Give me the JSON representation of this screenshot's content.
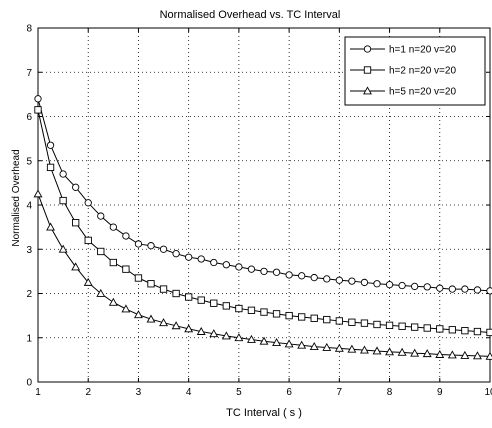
{
  "chart_data": {
    "type": "line",
    "title": "Normalised Overhead vs. TC Interval",
    "xlabel": "TC Interval ( s )",
    "ylabel": "Normalised Overhead",
    "xlim": [
      1,
      10
    ],
    "ylim": [
      0,
      8
    ],
    "xticks": [
      "1",
      "2",
      "3",
      "4",
      "5",
      "6",
      "7",
      "8",
      "9",
      "10"
    ],
    "yticks": [
      "0",
      "1",
      "2",
      "3",
      "4",
      "5",
      "6",
      "7",
      "8"
    ],
    "grid": true,
    "legend": "top-right",
    "series": [
      {
        "name": "h=1 n=20 v=20",
        "marker": "circle",
        "points": [
          [
            1.0,
            6.4
          ],
          [
            1.25,
            5.35
          ],
          [
            1.5,
            4.7
          ],
          [
            1.75,
            4.4
          ],
          [
            2.0,
            4.05
          ],
          [
            2.25,
            3.75
          ],
          [
            2.5,
            3.5
          ],
          [
            2.75,
            3.3
          ],
          [
            3.0,
            3.12
          ],
          [
            3.25,
            3.08
          ],
          [
            3.5,
            3.0
          ],
          [
            3.75,
            2.9
          ],
          [
            4.0,
            2.82
          ],
          [
            4.25,
            2.78
          ],
          [
            4.5,
            2.7
          ],
          [
            4.75,
            2.65
          ],
          [
            5.0,
            2.6
          ],
          [
            5.25,
            2.55
          ],
          [
            5.5,
            2.5
          ],
          [
            5.75,
            2.48
          ],
          [
            6.0,
            2.42
          ],
          [
            6.25,
            2.4
          ],
          [
            6.5,
            2.36
          ],
          [
            6.75,
            2.33
          ],
          [
            7.0,
            2.3
          ],
          [
            7.25,
            2.28
          ],
          [
            7.5,
            2.25
          ],
          [
            7.75,
            2.22
          ],
          [
            8.0,
            2.2
          ],
          [
            8.25,
            2.18
          ],
          [
            8.5,
            2.16
          ],
          [
            8.75,
            2.15
          ],
          [
            9.0,
            2.12
          ],
          [
            9.25,
            2.1
          ],
          [
            9.5,
            2.1
          ],
          [
            9.75,
            2.08
          ],
          [
            10.0,
            2.06
          ]
        ]
      },
      {
        "name": "h=2 n=20 v=20",
        "marker": "square",
        "points": [
          [
            1.0,
            6.15
          ],
          [
            1.25,
            4.85
          ],
          [
            1.5,
            4.1
          ],
          [
            1.75,
            3.6
          ],
          [
            2.0,
            3.2
          ],
          [
            2.25,
            2.95
          ],
          [
            2.5,
            2.7
          ],
          [
            2.75,
            2.55
          ],
          [
            3.0,
            2.35
          ],
          [
            3.25,
            2.22
          ],
          [
            3.5,
            2.1
          ],
          [
            3.75,
            2.0
          ],
          [
            4.0,
            1.92
          ],
          [
            4.25,
            1.85
          ],
          [
            4.5,
            1.78
          ],
          [
            4.75,
            1.72
          ],
          [
            5.0,
            1.66
          ],
          [
            5.25,
            1.62
          ],
          [
            5.5,
            1.58
          ],
          [
            5.75,
            1.54
          ],
          [
            6.0,
            1.5
          ],
          [
            6.25,
            1.47
          ],
          [
            6.5,
            1.44
          ],
          [
            6.75,
            1.41
          ],
          [
            7.0,
            1.38
          ],
          [
            7.25,
            1.35
          ],
          [
            7.5,
            1.33
          ],
          [
            7.75,
            1.3
          ],
          [
            8.0,
            1.28
          ],
          [
            8.25,
            1.26
          ],
          [
            8.5,
            1.24
          ],
          [
            8.75,
            1.22
          ],
          [
            9.0,
            1.2
          ],
          [
            9.25,
            1.18
          ],
          [
            9.5,
            1.16
          ],
          [
            9.75,
            1.14
          ],
          [
            10.0,
            1.12
          ]
        ]
      },
      {
        "name": "h=5 n=20 v=20",
        "marker": "triangle",
        "points": [
          [
            1.0,
            4.25
          ],
          [
            1.25,
            3.5
          ],
          [
            1.5,
            3.0
          ],
          [
            1.75,
            2.6
          ],
          [
            2.0,
            2.25
          ],
          [
            2.25,
            2.0
          ],
          [
            2.5,
            1.8
          ],
          [
            2.75,
            1.65
          ],
          [
            3.0,
            1.52
          ],
          [
            3.25,
            1.42
          ],
          [
            3.5,
            1.34
          ],
          [
            3.75,
            1.27
          ],
          [
            4.0,
            1.2
          ],
          [
            4.25,
            1.14
          ],
          [
            4.5,
            1.09
          ],
          [
            4.75,
            1.04
          ],
          [
            5.0,
            1.0
          ],
          [
            5.25,
            0.96
          ],
          [
            5.5,
            0.92
          ],
          [
            5.75,
            0.89
          ],
          [
            6.0,
            0.86
          ],
          [
            6.25,
            0.83
          ],
          [
            6.5,
            0.8
          ],
          [
            6.75,
            0.78
          ],
          [
            7.0,
            0.76
          ],
          [
            7.25,
            0.74
          ],
          [
            7.5,
            0.72
          ],
          [
            7.75,
            0.7
          ],
          [
            8.0,
            0.68
          ],
          [
            8.25,
            0.67
          ],
          [
            8.5,
            0.65
          ],
          [
            8.75,
            0.64
          ],
          [
            9.0,
            0.62
          ],
          [
            9.25,
            0.61
          ],
          [
            9.5,
            0.6
          ],
          [
            9.75,
            0.59
          ],
          [
            10.0,
            0.58
          ]
        ]
      }
    ]
  }
}
